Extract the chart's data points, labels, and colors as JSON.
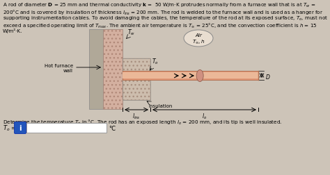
{
  "bg_color": "#cdc4b8",
  "top_text_line1": "A rod of diameter $\\mathbf{D}$ = 25 mm and thermal conductivity $\\mathbf{k}$ =  50 W/m·K protrudes normally from a furnace wall that is at $T_w$ =",
  "top_text_line2": "200°C and is covered by insulation of thickness $l_{ins}$ = 200 mm. The rod is welded to the furnace wall and is used as a hanger for",
  "top_text_line3": "supporting instrumentation cables. To avoid damaging the cables, the temperature of the rod at its exposed surface, $T_o$, must not",
  "top_text_line4": "exceed a specified operating limit of $T_{max}$. The ambient air temperature is $T_\\infty$ = 25°C, and the convection coefficient is $h$ = 15",
  "top_text_line5": "W/m²·K.",
  "bottom_text": "Determine the temperature $T_o$ in °C. The rod has an exposed length $l_o$ = 200 mm, and its tip is well insulated.",
  "wall_color": "#c8a898",
  "wall_hatch_color": "#b08878",
  "ins_color": "#c8b8a8",
  "rod_color": "#e09070",
  "rod_edge_color": "#c07050",
  "air_bubble_color": "#e8ddd0"
}
